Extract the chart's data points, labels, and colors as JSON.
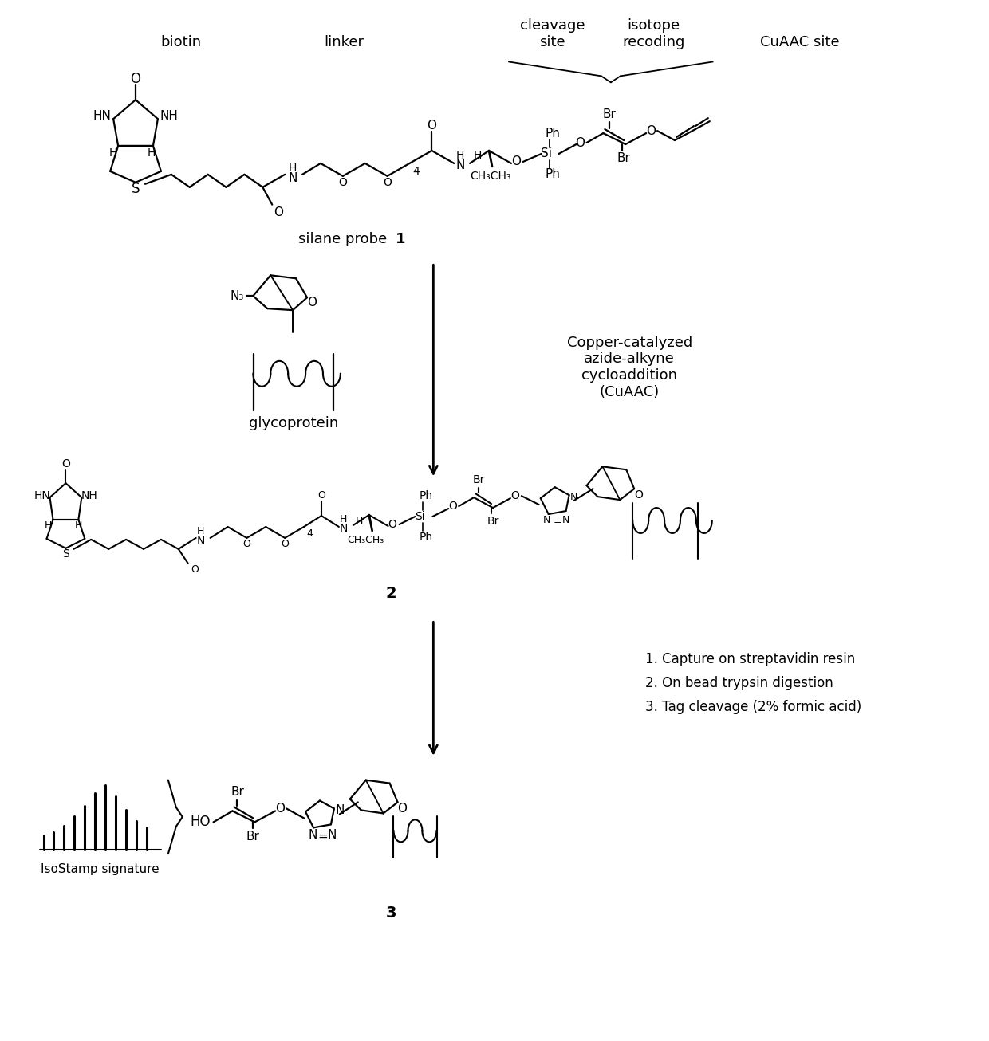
{
  "bg_color": "#ffffff",
  "figsize": [
    12.4,
    13.06
  ],
  "dpi": 100,
  "labels": {
    "biotin": "biotin",
    "linker": "linker",
    "cleavage_site": "cleavage\nsite",
    "isotope_recoding": "isotope\nrecoding",
    "cuaac_site": "CuAAC site",
    "silane_probe_normal": "silane probe ",
    "silane_probe_bold": "1",
    "glycoprotein": "glycoprotein",
    "cuaac_reaction": "Copper-catalyzed\nazide-alkyne\ncycloaddition\n(CuAAC)",
    "compound2": "2",
    "step1": "1. Capture on streptavidin resin",
    "step2": "2. On bead trypsin digestion",
    "step3": "3. Tag cleavage (2% formic acid)",
    "compound3": "3",
    "isostamp": "IsoStamp signature"
  }
}
